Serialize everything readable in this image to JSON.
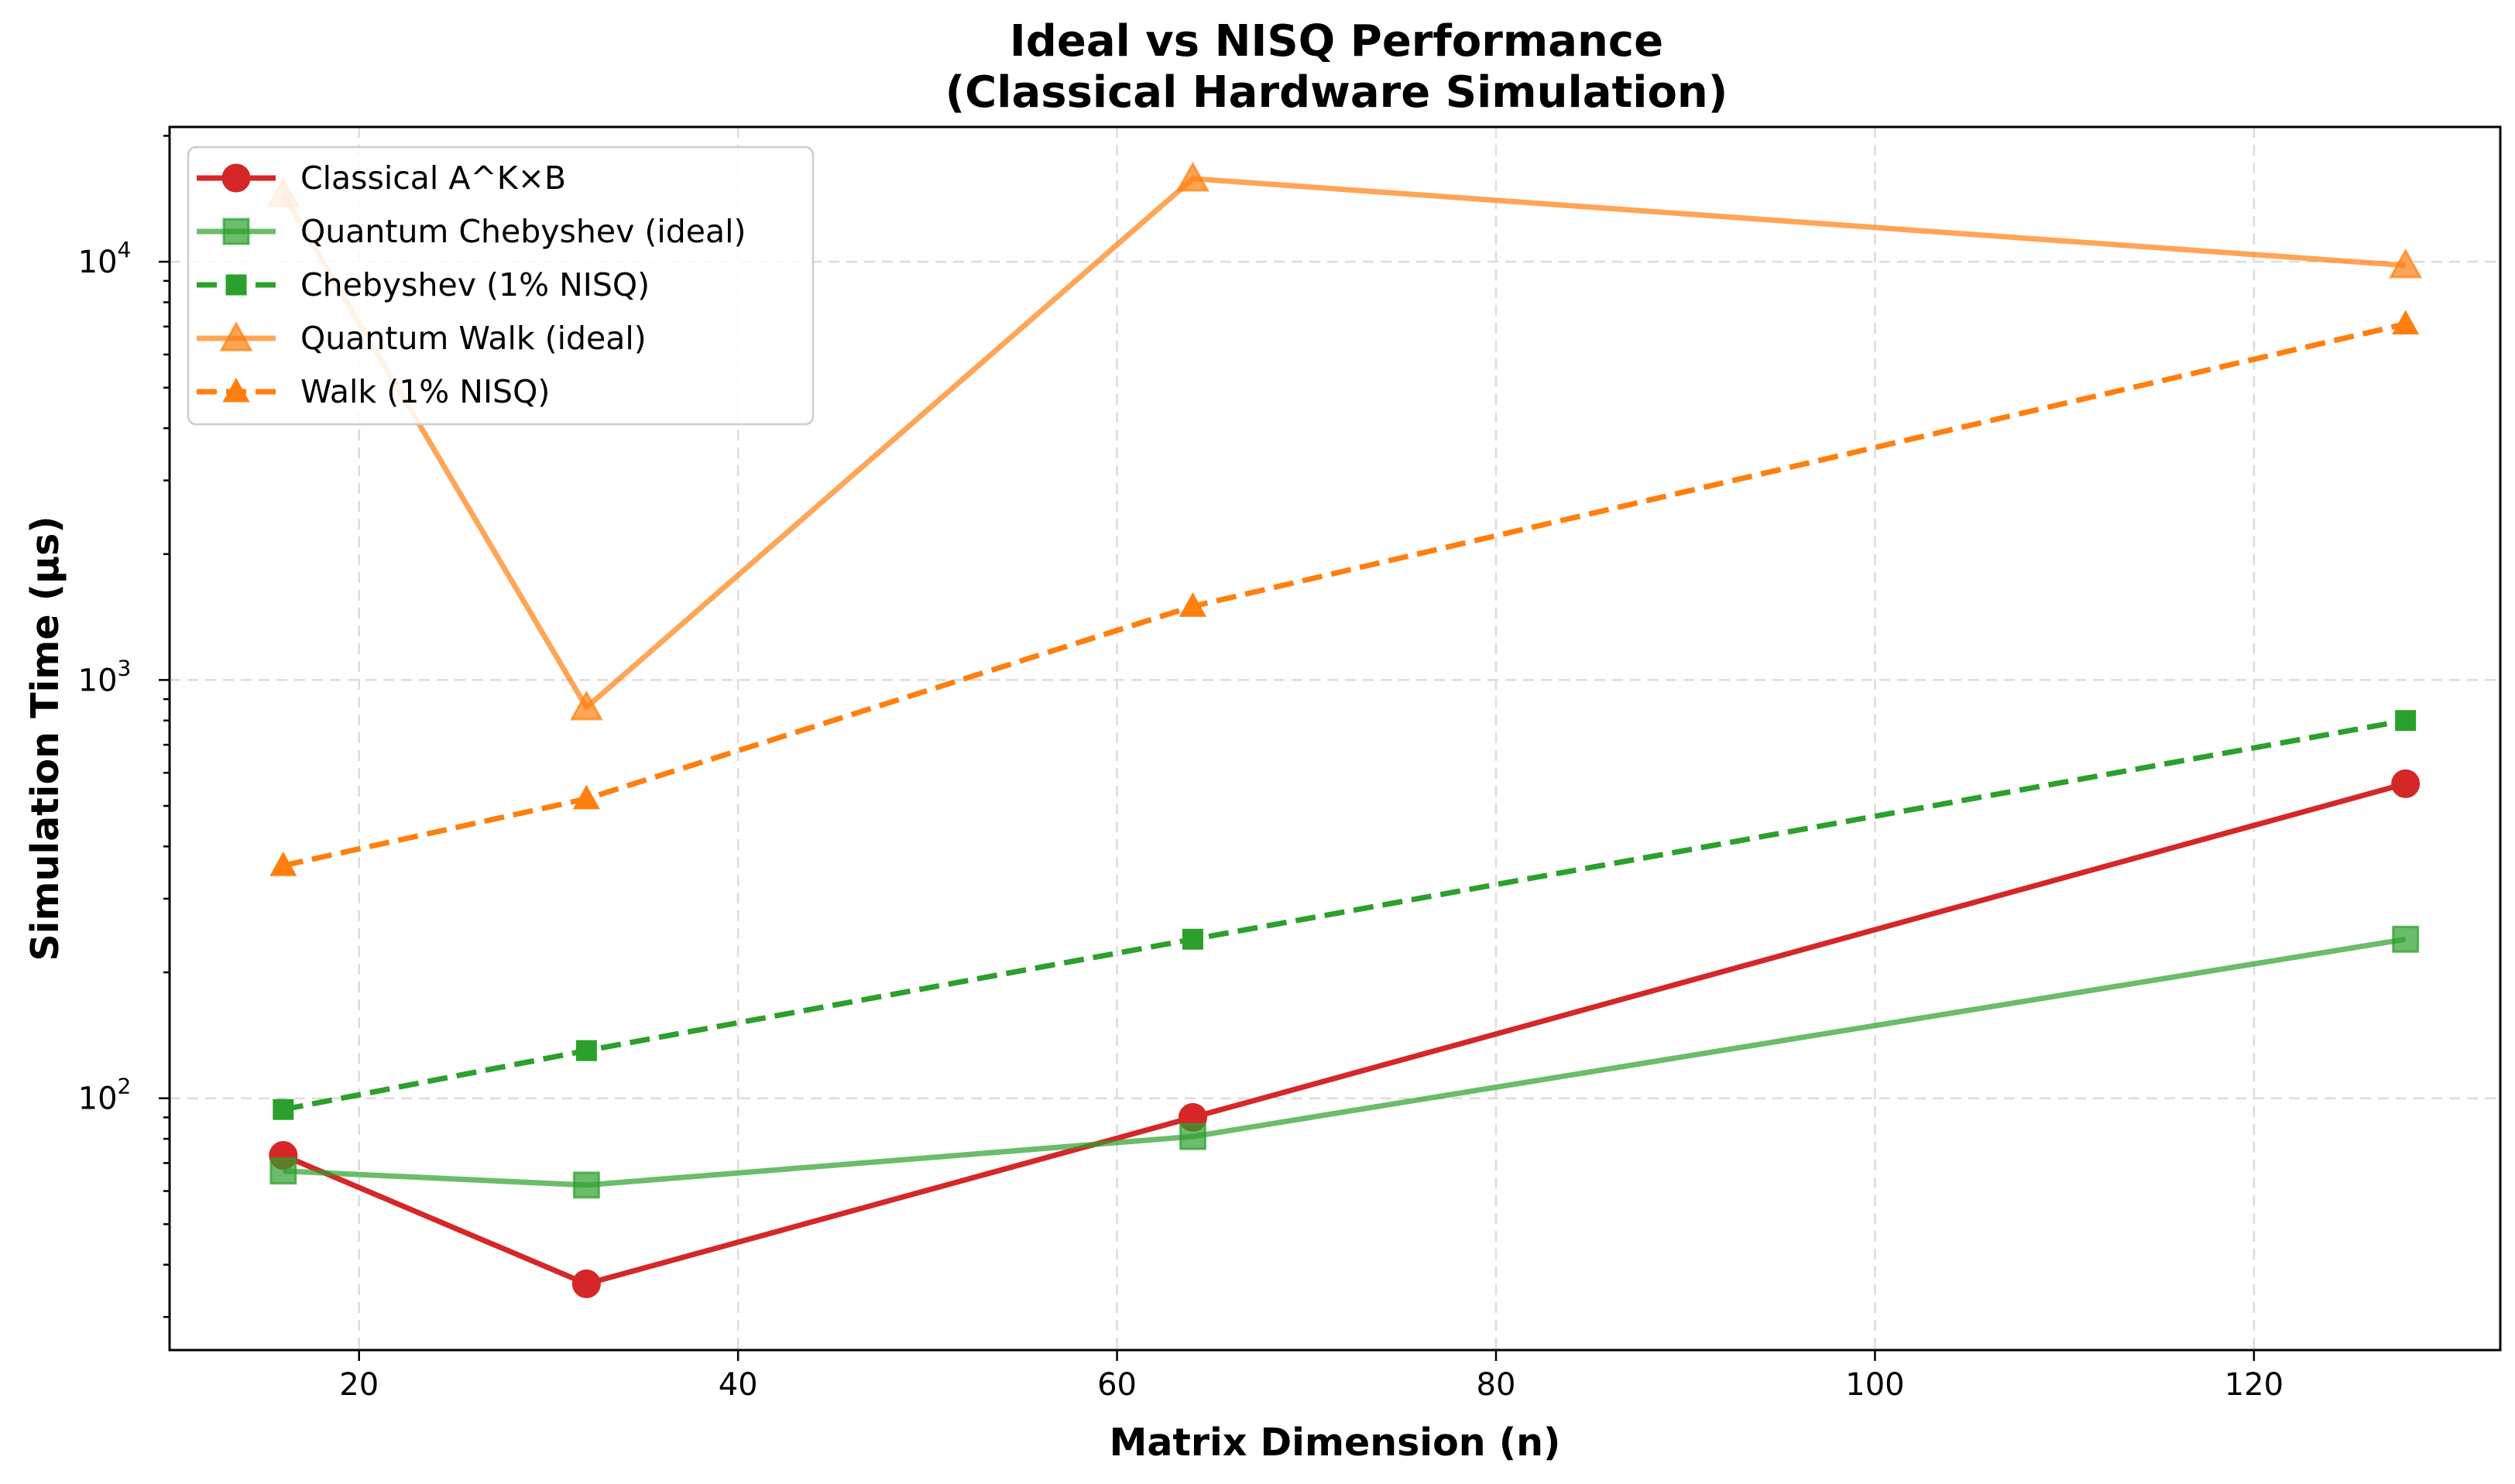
{
  "chart_data": {
    "type": "line",
    "title": "Ideal vs NISQ Performance",
    "subtitle": "(Classical Hardware Simulation)",
    "xlabel": "Matrix Dimension (n)",
    "ylabel": "Simulation Time (µs)",
    "xscale": "linear",
    "yscale": "log",
    "xlim": [
      10,
      133
    ],
    "ylim": [
      25,
      21000
    ],
    "xticks": [
      20,
      40,
      60,
      80,
      100,
      120
    ],
    "yticks": [
      {
        "value": 100,
        "base": "10",
        "exp": "2"
      },
      {
        "value": 1000,
        "base": "10",
        "exp": "3"
      },
      {
        "value": 10000,
        "base": "10",
        "exp": "4"
      }
    ],
    "grid": true,
    "legend_position": "upper-left",
    "x": [
      16,
      32,
      64,
      128
    ],
    "series": [
      {
        "name": "Classical A^K×B",
        "values": [
          73,
          36,
          90,
          565
        ],
        "color": "#d62728",
        "dash": "solid",
        "marker": "circle",
        "alpha": 1.0,
        "width": 7
      },
      {
        "name": "Quantum Chebyshev (ideal)",
        "values": [
          67,
          62,
          81,
          240
        ],
        "color": "#2ca02c",
        "dash": "solid",
        "marker": "square",
        "alpha": 0.7,
        "width": 7
      },
      {
        "name": "Chebyshev (1% NISQ)",
        "values": [
          94,
          130,
          240,
          800
        ],
        "color": "#2ca02c",
        "dash": "dashed",
        "marker": "square-small",
        "alpha": 1.0,
        "width": 7
      },
      {
        "name": "Quantum Walk (ideal)",
        "values": [
          14500,
          860,
          15800,
          9800
        ],
        "color": "#ff7f0e",
        "dash": "solid",
        "marker": "triangle",
        "alpha": 0.7,
        "width": 7
      },
      {
        "name": "Walk (1% NISQ)",
        "values": [
          360,
          520,
          1500,
          7100
        ],
        "color": "#ff7f0e",
        "dash": "dashed",
        "marker": "triangle-small",
        "alpha": 1.0,
        "width": 7
      }
    ]
  }
}
